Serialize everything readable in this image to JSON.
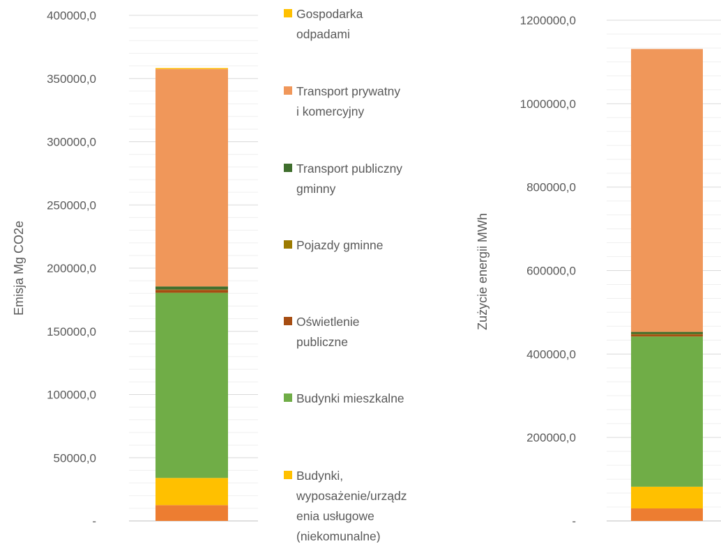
{
  "legend": [
    {
      "key": "gospodarka_odpadami",
      "lines": [
        "Gospodarka",
        "odpadami"
      ],
      "color": "#FFC000"
    },
    {
      "key": "transport_prywatny",
      "lines": [
        "Transport prywatny",
        "i komercyjny"
      ],
      "color": "#F0975A"
    },
    {
      "key": "transport_publiczny",
      "lines": [
        "Transport publiczny",
        "gminny"
      ],
      "color": "#3F6E2D"
    },
    {
      "key": "pojazdy_gminne",
      "lines": [
        "Pojazdy gminne"
      ],
      "color": "#9C7A00"
    },
    {
      "key": "oswietlenie",
      "lines": [
        "Oświetlenie",
        "publiczne"
      ],
      "color": "#A64D12"
    },
    {
      "key": "budynki_mieszkalne",
      "lines": [
        "Budynki mieszkalne"
      ],
      "color": "#70AD47"
    },
    {
      "key": "budynki_uslugowe",
      "lines": [
        "Budynki,",
        "wyposażenie/urządz",
        "enia usługowe",
        "(niekomunalne)"
      ],
      "color": "#FFC000"
    }
  ],
  "chart_data": [
    {
      "type": "bar",
      "stacked": true,
      "ylabel": "Emisja Mg CO2e",
      "ylim": [
        0,
        400000
      ],
      "yticks": [
        "-",
        "50000,0",
        "100000,0",
        "150000,0",
        "200000,0",
        "250000,0",
        "300000,0",
        "350000,0",
        "400000,0"
      ],
      "grid": true,
      "series": [
        {
          "key": "bottom_orange",
          "color": "#ED7D31",
          "value": 12500
        },
        {
          "key": "budynki_uslugowe",
          "color": "#FFC000",
          "value": 21500
        },
        {
          "key": "budynki_mieszkalne",
          "color": "#70AD47",
          "value": 146500
        },
        {
          "key": "oswietlenie",
          "color": "#A64D12",
          "value": 2300
        },
        {
          "key": "pojazdy_gminne",
          "color": "#9C7A00",
          "value": 300
        },
        {
          "key": "transport_publiczny",
          "color": "#3F6E2D",
          "value": 2400
        },
        {
          "key": "transport_prywatny",
          "color": "#F0975A",
          "value": 172000
        },
        {
          "key": "gospodarka_odpadami",
          "color": "#FFC000",
          "value": 800
        }
      ]
    },
    {
      "type": "bar",
      "stacked": true,
      "ylabel": "Zużycie energii  MWh",
      "ylim": [
        0,
        1200000
      ],
      "yticks": [
        "-",
        "200000,0",
        "400000,0",
        "600000,0",
        "800000,0",
        "1000000,0",
        "1200000,0"
      ],
      "grid": true,
      "series": [
        {
          "key": "bottom_orange",
          "color": "#ED7D31",
          "value": 30000
        },
        {
          "key": "budynki_uslugowe",
          "color": "#FFC000",
          "value": 52000
        },
        {
          "key": "budynki_mieszkalne",
          "color": "#70AD47",
          "value": 360000
        },
        {
          "key": "oswietlenie",
          "color": "#A64D12",
          "value": 5000
        },
        {
          "key": "pojazdy_gminne",
          "color": "#9C7A00",
          "value": 1000
        },
        {
          "key": "transport_publiczny",
          "color": "#3F6E2D",
          "value": 5000
        },
        {
          "key": "transport_prywatny",
          "color": "#F0975A",
          "value": 678000
        }
      ]
    }
  ]
}
